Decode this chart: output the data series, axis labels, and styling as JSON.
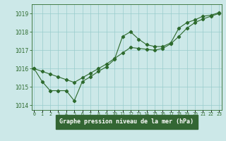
{
  "title": "Graphe pression niveau de la mer (hPa)",
  "line1": {
    "x": [
      0,
      1,
      2,
      3,
      4,
      5,
      6,
      7,
      8,
      9,
      10,
      11,
      12,
      13,
      14,
      15,
      16,
      17,
      18,
      19,
      20,
      21,
      22,
      23
    ],
    "y": [
      1016.0,
      1015.3,
      1014.8,
      1014.8,
      1014.8,
      1014.25,
      1015.3,
      1015.55,
      1015.85,
      1016.1,
      1016.5,
      1017.75,
      1018.0,
      1017.6,
      1017.3,
      1017.2,
      1017.2,
      1017.4,
      1018.2,
      1018.5,
      1018.65,
      1018.85,
      1018.9,
      1019.05
    ]
  },
  "line2": {
    "x": [
      0,
      1,
      2,
      3,
      4,
      5,
      6,
      7,
      8,
      9,
      10,
      11,
      12,
      13,
      14,
      15,
      16,
      17,
      18,
      19,
      20,
      21,
      22,
      23
    ],
    "y": [
      1016.0,
      1015.85,
      1015.7,
      1015.55,
      1015.4,
      1015.25,
      1015.5,
      1015.75,
      1016.0,
      1016.25,
      1016.55,
      1016.85,
      1017.15,
      1017.1,
      1017.05,
      1017.0,
      1017.1,
      1017.35,
      1017.75,
      1018.2,
      1018.5,
      1018.7,
      1018.85,
      1019.0
    ]
  },
  "line_color": "#2d6a2d",
  "bg_color": "#cce8e8",
  "grid_color": "#99cccc",
  "title_bg": "#336633",
  "title_color": "#ffffff",
  "ylim": [
    1013.75,
    1019.5
  ],
  "xlim": [
    -0.3,
    23.3
  ],
  "yticks": [
    1014,
    1015,
    1016,
    1017,
    1018,
    1019
  ],
  "xtick_labels": [
    "0",
    "1",
    "2",
    "3",
    "4",
    "5",
    "6",
    "7",
    "8",
    "9",
    "10",
    "11",
    "12",
    "13",
    "14",
    "15",
    "16",
    "17",
    "18",
    "19",
    "20",
    "21",
    "22",
    "23"
  ]
}
